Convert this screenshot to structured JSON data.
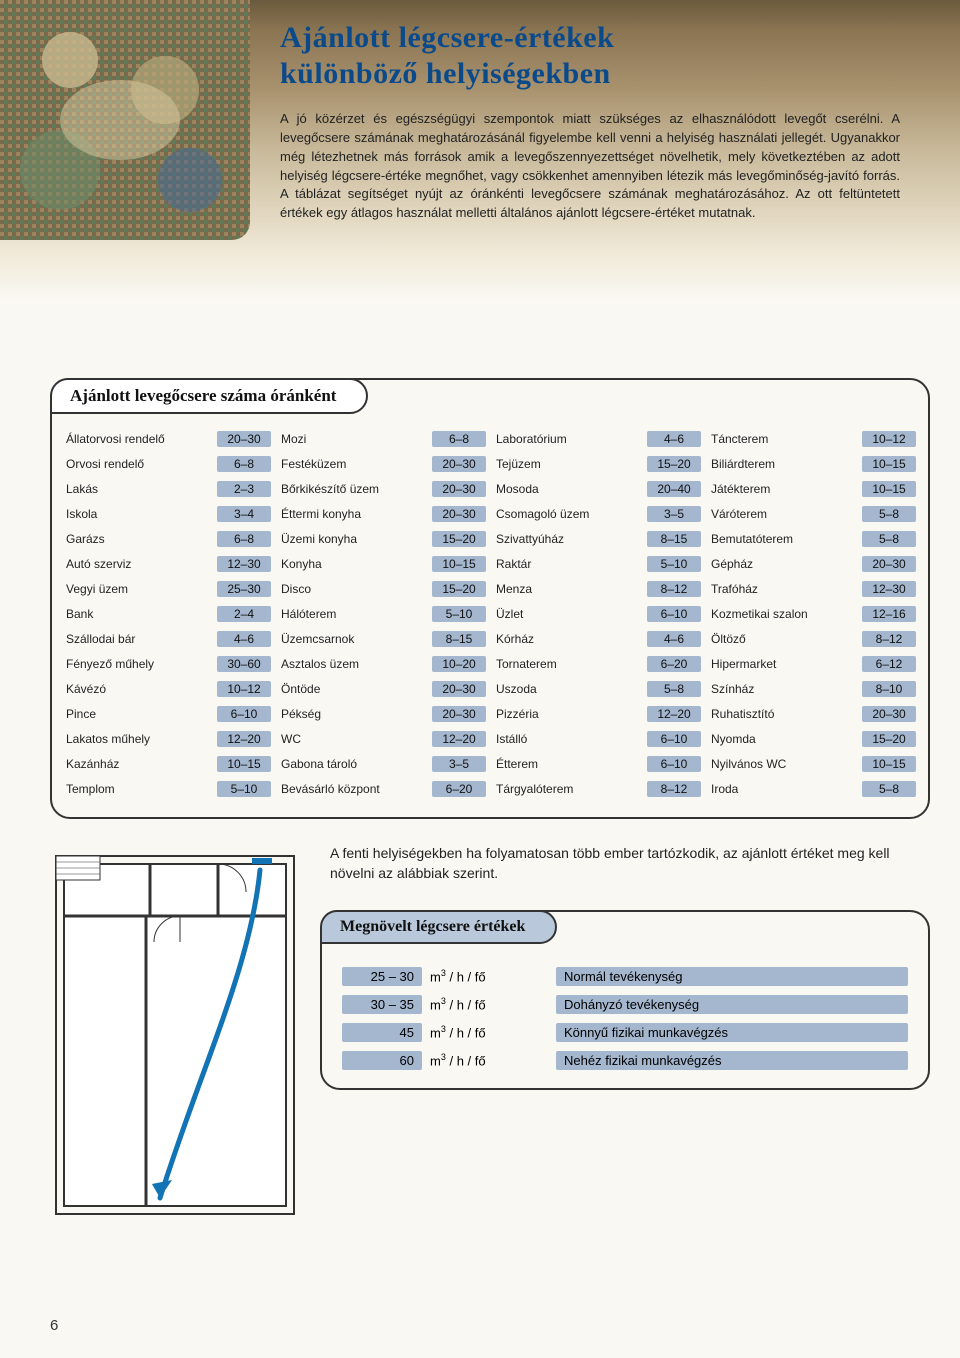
{
  "title_line1": "Ajánlott légcsere-értékek",
  "title_line2": "különböző helyiségekben",
  "intro": "A jó közérzet és egészségügyi szempontok miatt szükséges az elhasználódott levegőt cserélni. A levegőcsere számának meghatározásánál figyelembe kell venni a helyiség használati jellegét. Ugyanakkor még létezhetnek más források amik a levegőszennyezettséget növelhetik, mely következtében az adott helyiség légcsere-értéke megnőhet, vagy csökkenhet amennyiben létezik más levegőminőség-javító forrás. A táblázat segítséget nyújt az óránkénti levegőcsere számának meghatározásához. Az ott feltüntetett értékek egy átlagos használat melletti általános ajánlott légcsere-értéket mutatnak.",
  "table1_heading": "Ajánlott levegőcsere száma óránként",
  "lower_text": "A fenti helyiségekben ha folyamatosan több ember tartózkodik, az ajánlott értéket meg kell növelni az alábbiak szerint.",
  "table2_heading": "Megnövelt légcsere értékek",
  "page_number": "6",
  "colors": {
    "title": "#0a4a8a",
    "pill_bg": "#a4b7cf",
    "panel2_tab_bg": "#b9c8db",
    "border": "#333333",
    "page_bg": "#faf8f3"
  },
  "columns": [
    [
      {
        "label": "Állatorvosi rendelő",
        "val": "20–30"
      },
      {
        "label": "Orvosi rendelő",
        "val": "6–8"
      },
      {
        "label": "Lakás",
        "val": "2–3"
      },
      {
        "label": "Iskola",
        "val": "3–4"
      },
      {
        "label": "Garázs",
        "val": "6–8"
      },
      {
        "label": "Autó szerviz",
        "val": "12–30"
      },
      {
        "label": "Vegyi üzem",
        "val": "25–30"
      },
      {
        "label": "Bank",
        "val": "2–4"
      },
      {
        "label": "Szállodai bár",
        "val": "4–6"
      },
      {
        "label": "Fényező műhely",
        "val": "30–60"
      },
      {
        "label": "Kávézó",
        "val": "10–12"
      },
      {
        "label": "Pince",
        "val": "6–10"
      },
      {
        "label": "Lakatos műhely",
        "val": "12–20"
      },
      {
        "label": "Kazánház",
        "val": "10–15"
      },
      {
        "label": "Templom",
        "val": "5–10"
      }
    ],
    [
      {
        "label": "Mozi",
        "val": "6–8"
      },
      {
        "label": "Festéküzem",
        "val": "20–30"
      },
      {
        "label": "Bőrkikészítő üzem",
        "val": "20–30"
      },
      {
        "label": "Éttermi konyha",
        "val": "20–30"
      },
      {
        "label": "Üzemi konyha",
        "val": "15–20"
      },
      {
        "label": "Konyha",
        "val": "10–15"
      },
      {
        "label": "Disco",
        "val": "15–20"
      },
      {
        "label": "Hálóterem",
        "val": "5–10"
      },
      {
        "label": "Üzemcsarnok",
        "val": "8–15"
      },
      {
        "label": "Asztalos üzem",
        "val": "10–20"
      },
      {
        "label": "Öntöde",
        "val": "20–30"
      },
      {
        "label": "Pékség",
        "val": "20–30"
      },
      {
        "label": "WC",
        "val": "12–20"
      },
      {
        "label": "Gabona tároló",
        "val": "3–5"
      },
      {
        "label": "Bevásárló központ",
        "val": "6–20"
      }
    ],
    [
      {
        "label": "Laboratórium",
        "val": "4–6"
      },
      {
        "label": "Tejüzem",
        "val": "15–20"
      },
      {
        "label": "Mosoda",
        "val": "20–40"
      },
      {
        "label": "Csomagoló üzem",
        "val": "3–5"
      },
      {
        "label": "Szivattyúház",
        "val": "8–15"
      },
      {
        "label": "Raktár",
        "val": "5–10"
      },
      {
        "label": "Menza",
        "val": "8–12"
      },
      {
        "label": "Üzlet",
        "val": "6–10"
      },
      {
        "label": "Kórház",
        "val": "4–6"
      },
      {
        "label": "Tornaterem",
        "val": "6–20"
      },
      {
        "label": "Uszoda",
        "val": "5–8"
      },
      {
        "label": "Pizzéria",
        "val": "12–20"
      },
      {
        "label": "Istálló",
        "val": "6–10"
      },
      {
        "label": "Étterem",
        "val": "6–10"
      },
      {
        "label": "Tárgyalóterem",
        "val": "8–12"
      }
    ],
    [
      {
        "label": "Táncterem",
        "val": "10–12"
      },
      {
        "label": "Biliárdterem",
        "val": "10–15"
      },
      {
        "label": "Játékterem",
        "val": "10–15"
      },
      {
        "label": "Váróterem",
        "val": "5–8"
      },
      {
        "label": "Bemutatóterem",
        "val": "5–8"
      },
      {
        "label": "Gépház",
        "val": "20–30"
      },
      {
        "label": "Trafóház",
        "val": "12–30"
      },
      {
        "label": "Kozmetikai szalon",
        "val": "12–16"
      },
      {
        "label": "Öltöző",
        "val": "8–12"
      },
      {
        "label": "Hipermarket",
        "val": "6–12"
      },
      {
        "label": "Színház",
        "val": "8–10"
      },
      {
        "label": "Ruhatisztító",
        "val": "20–30"
      },
      {
        "label": "Nyomda",
        "val": "15–20"
      },
      {
        "label": "Nyilvános WC",
        "val": "10–15"
      },
      {
        "label": "Iroda",
        "val": "5–8"
      }
    ]
  ],
  "increased": [
    {
      "num": "25 – 30",
      "unit": "m³ / h / fő",
      "desc": "Normál tevékenység"
    },
    {
      "num": "30 – 35",
      "unit": "m³ / h / fő",
      "desc": "Dohányzó tevékenység"
    },
    {
      "num": "45",
      "unit": "m³ / h / fő",
      "desc": "Könnyű fizikai munkavégzés"
    },
    {
      "num": "60",
      "unit": "m³ / h / fő",
      "desc": "Nehéz fizikai munkavégzés"
    }
  ]
}
